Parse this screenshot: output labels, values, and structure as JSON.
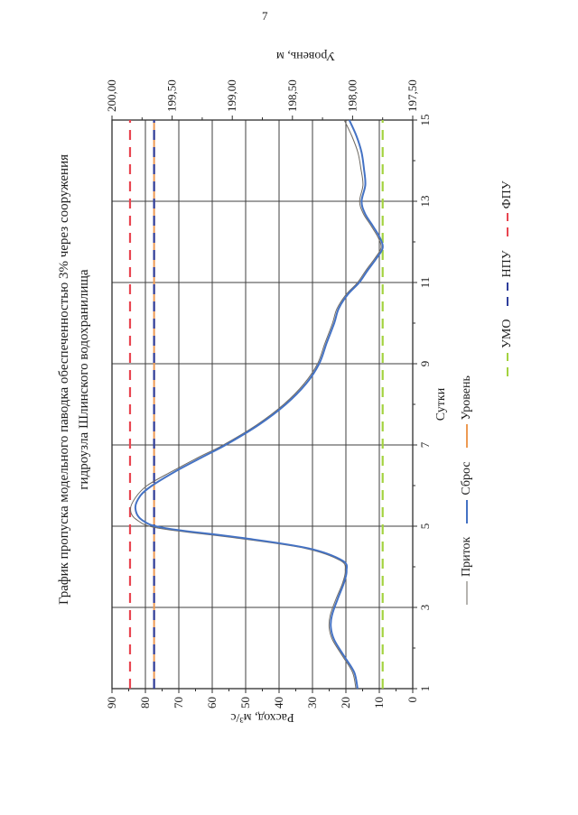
{
  "page": {
    "number": "7"
  },
  "title": {
    "line1": "График пропуска модельного паводка обеспеченностью 3% через сооружения",
    "line2": "гидроузла Шлинского водохранилища"
  },
  "colors": {
    "grid": "#3f3f3f",
    "frame": "#2e2e2e",
    "text": "#1c1c1c",
    "inflow": "#6e6962",
    "discharge": "#4472c4",
    "level": "#ed9a53",
    "umo": "#a3d23f",
    "npu": "#2e3e9c",
    "fpu": "#e84550"
  },
  "chart_data": {
    "type": "line",
    "x_axis": {
      "title": "Сутки",
      "min": 1,
      "max": 15,
      "tick_labels": [
        "1",
        "3",
        "5",
        "7",
        "9",
        "11",
        "13",
        "15"
      ],
      "label_step": 2,
      "minor_step": 1,
      "grid_step": 2
    },
    "y_left": {
      "title": "Расход, м³/с",
      "min": 0,
      "max": 90,
      "tick_labels": [
        "90",
        "80",
        "70",
        "60",
        "50",
        "40",
        "30",
        "20",
        "10",
        "0"
      ],
      "major_step": 10,
      "minor_step": 5,
      "grid_step": 10
    },
    "y_right": {
      "title": "Уровень, м",
      "min": 197.5,
      "max": 200.0,
      "tick_labels": [
        "200,00",
        "199,50",
        "199,00",
        "198,50",
        "198,00",
        "197,50"
      ],
      "major_step": 0.5,
      "minor_step": 0.25
    },
    "reference_lines": [
      {
        "id": "umo",
        "label": "УМО",
        "level": 197.75,
        "color_key": "umo"
      },
      {
        "id": "npu",
        "label": "НПУ",
        "level": 199.65,
        "color_key": "npu"
      },
      {
        "id": "fpu",
        "label": "ФПУ",
        "level": 199.85,
        "color_key": "fpu"
      }
    ],
    "series": [
      {
        "id": "level",
        "name": "Уровень",
        "axis": "right",
        "color_key": "level",
        "width": 2,
        "smooth": false,
        "points": [
          [
            1,
            199.65
          ],
          [
            15,
            199.65
          ]
        ]
      },
      {
        "id": "inflow",
        "name": "Приток",
        "axis": "left",
        "color_key": "inflow",
        "width": 1,
        "smooth": true,
        "points": [
          [
            1,
            17
          ],
          [
            1.4,
            18
          ],
          [
            1.8,
            21
          ],
          [
            2.2,
            24
          ],
          [
            2.5,
            25
          ],
          [
            2.8,
            24.7
          ],
          [
            3.2,
            23
          ],
          [
            3.6,
            21
          ],
          [
            3.9,
            20.2
          ],
          [
            4.15,
            21.6
          ],
          [
            4.45,
            32
          ],
          [
            4.7,
            52
          ],
          [
            4.95,
            76
          ],
          [
            5.15,
            82.5
          ],
          [
            5.4,
            84.5
          ],
          [
            5.7,
            83
          ],
          [
            6,
            79.5
          ],
          [
            6.35,
            72
          ],
          [
            6.7,
            64
          ],
          [
            7,
            56.7
          ],
          [
            7.5,
            46.6
          ],
          [
            8,
            38.6
          ],
          [
            8.5,
            32.6
          ],
          [
            9,
            28.5
          ],
          [
            9.5,
            26.3
          ],
          [
            10,
            24
          ],
          [
            10.35,
            22.7
          ],
          [
            10.7,
            20
          ],
          [
            11,
            16.5
          ],
          [
            11.3,
            14
          ],
          [
            11.6,
            11.3
          ],
          [
            11.85,
            9.5
          ],
          [
            12.1,
            10.3
          ],
          [
            12.4,
            12.5
          ],
          [
            12.7,
            14.8
          ],
          [
            13,
            15.9
          ],
          [
            13.4,
            14.9
          ],
          [
            13.8,
            15.5
          ],
          [
            14.2,
            16.4
          ],
          [
            14.6,
            18.2
          ],
          [
            15,
            20.5
          ]
        ]
      },
      {
        "id": "discharge",
        "name": "Сброс",
        "axis": "left",
        "color_key": "discharge",
        "width": 2,
        "smooth": true,
        "points": [
          [
            1,
            16.5
          ],
          [
            1.4,
            17.5
          ],
          [
            1.8,
            20.5
          ],
          [
            2.2,
            23.5
          ],
          [
            2.5,
            24.5
          ],
          [
            2.8,
            24.2
          ],
          [
            3.2,
            22.5
          ],
          [
            3.6,
            20.6
          ],
          [
            3.9,
            19.8
          ],
          [
            4.15,
            21
          ],
          [
            4.45,
            31
          ],
          [
            4.7,
            50
          ],
          [
            4.95,
            74
          ],
          [
            5.15,
            81
          ],
          [
            5.45,
            83
          ],
          [
            5.75,
            81.5
          ],
          [
            6,
            78
          ],
          [
            6.35,
            71
          ],
          [
            6.7,
            63
          ],
          [
            7,
            56
          ],
          [
            7.5,
            46
          ],
          [
            8,
            38
          ],
          [
            8.5,
            32
          ],
          [
            9,
            28
          ],
          [
            9.5,
            25.8
          ],
          [
            10,
            23.5
          ],
          [
            10.35,
            22.2
          ],
          [
            10.7,
            19.5
          ],
          [
            11,
            16
          ],
          [
            11.3,
            13.5
          ],
          [
            11.6,
            10.8
          ],
          [
            11.85,
            9
          ],
          [
            12.1,
            9.8
          ],
          [
            12.4,
            12
          ],
          [
            12.7,
            14.3
          ],
          [
            13,
            15.3
          ],
          [
            13.4,
            14.2
          ],
          [
            13.8,
            14.6
          ],
          [
            14.2,
            15.3
          ],
          [
            14.6,
            16.8
          ],
          [
            15,
            19
          ]
        ]
      }
    ],
    "legend_position": "bottom",
    "grid": true
  },
  "legend_items": [
    {
      "id": "inflow",
      "label": "Приток",
      "color_key": "inflow",
      "style": "solid",
      "weight": 1,
      "row": 1
    },
    {
      "id": "discharge",
      "label": "Сброс",
      "color_key": "discharge",
      "style": "solid",
      "weight": 2,
      "row": 1
    },
    {
      "id": "level",
      "label": "Уровень",
      "color_key": "level",
      "style": "solid",
      "weight": 2,
      "row": 1
    },
    {
      "id": "umo",
      "label": "УМО",
      "color_key": "umo",
      "style": "dashed",
      "weight": 2,
      "row": 2
    },
    {
      "id": "npu",
      "label": "НПУ",
      "color_key": "npu",
      "style": "dashed",
      "weight": 2,
      "row": 2
    },
    {
      "id": "fpu",
      "label": "ФПУ",
      "color_key": "fpu",
      "style": "dashed",
      "weight": 2,
      "row": 2
    }
  ]
}
